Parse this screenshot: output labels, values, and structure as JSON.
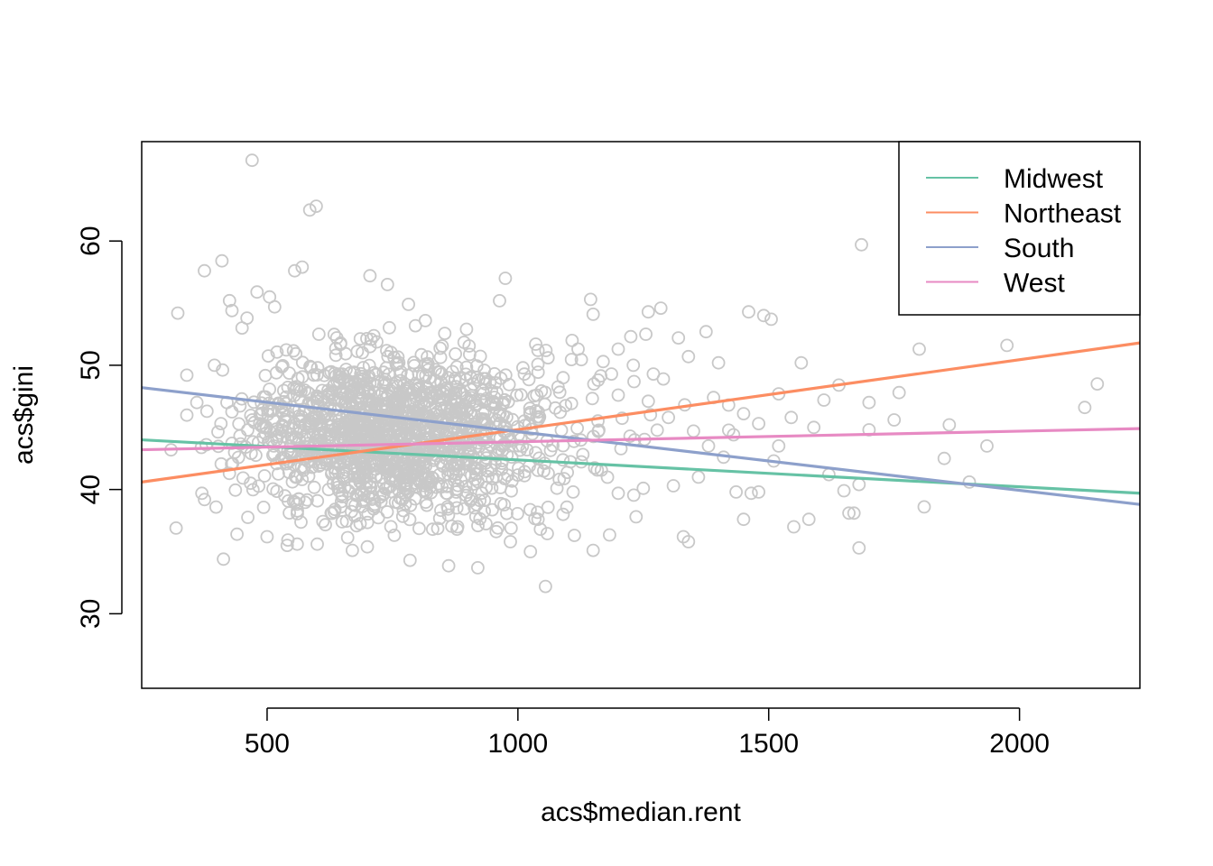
{
  "chart_data": {
    "type": "scatter",
    "title": "",
    "xlabel": "acs$median.rent",
    "ylabel": "acs$gini",
    "xlim": [
      250,
      2240
    ],
    "ylim": [
      24,
      68
    ],
    "x_ticks": [
      500,
      1000,
      1500,
      2000
    ],
    "y_ticks": [
      30,
      40,
      50,
      60
    ],
    "x_tick_labels": [
      "500",
      "1000",
      "1500",
      "2000"
    ],
    "y_tick_labels": [
      "30",
      "40",
      "50",
      "60"
    ],
    "grid": false,
    "legend_position": "top-right",
    "point_color": "#c8c8c8",
    "point_style": "open-circle",
    "points": {
      "cluster": {
        "x_center": 680,
        "y_center": 44.5,
        "x_spread": 120,
        "y_spread": 3.2,
        "count": 1500
      },
      "outliers": [
        [
          470,
          66.5
        ],
        [
          585,
          62.5
        ],
        [
          598,
          62.8
        ],
        [
          322,
          54.2
        ],
        [
          375,
          57.6
        ],
        [
          410,
          58.4
        ],
        [
          1685,
          59.7
        ],
        [
          975,
          57.0
        ],
        [
          705,
          57.2
        ],
        [
          740,
          56.5
        ],
        [
          570,
          57.9
        ],
        [
          555,
          57.6
        ],
        [
          1460,
          54.3
        ],
        [
          1490,
          54.0
        ],
        [
          1505,
          53.7
        ],
        [
          1285,
          54.6
        ],
        [
          1145,
          55.3
        ],
        [
          1150,
          54.1
        ],
        [
          1225,
          52.3
        ],
        [
          1255,
          52.5
        ],
        [
          1320,
          52.2
        ],
        [
          1375,
          52.7
        ],
        [
          1200,
          51.3
        ],
        [
          1108,
          52.0
        ],
        [
          1800,
          51.3
        ],
        [
          1975,
          51.6
        ],
        [
          1565,
          50.2
        ],
        [
          1400,
          50.2
        ],
        [
          1340,
          50.7
        ],
        [
          1640,
          48.4
        ],
        [
          1760,
          47.8
        ],
        [
          2155,
          48.5
        ],
        [
          2130,
          46.6
        ],
        [
          1700,
          47.0
        ],
        [
          1750,
          45.6
        ],
        [
          1860,
          45.2
        ],
        [
          1700,
          44.8
        ],
        [
          1935,
          43.5
        ],
        [
          1850,
          42.5
        ],
        [
          1620,
          41.2
        ],
        [
          1900,
          40.6
        ],
        [
          1680,
          40.4
        ],
        [
          1650,
          39.9
        ],
        [
          1660,
          38.1
        ],
        [
          1670,
          38.1
        ],
        [
          1810,
          38.6
        ],
        [
          1580,
          37.6
        ],
        [
          1550,
          37.0
        ],
        [
          1450,
          37.6
        ],
        [
          1680,
          35.3
        ],
        [
          1330,
          36.2
        ],
        [
          1340,
          35.8
        ],
        [
          1435,
          39.8
        ],
        [
          1480,
          39.8
        ],
        [
          1465,
          39.7
        ],
        [
          1510,
          42.3
        ],
        [
          1545,
          45.8
        ],
        [
          1590,
          45.0
        ],
        [
          1520,
          47.7
        ],
        [
          1610,
          47.2
        ],
        [
          413,
          34.4
        ],
        [
          440,
          36.4
        ],
        [
          370,
          39.7
        ],
        [
          1055,
          32.2
        ],
        [
          920,
          33.7
        ],
        [
          1025,
          35.0
        ],
        [
          1150,
          35.1
        ],
        [
          785,
          34.3
        ],
        [
          600,
          35.6
        ],
        [
          670,
          35.1
        ],
        [
          560,
          35.6
        ],
        [
          540,
          35.5
        ],
        [
          500,
          36.2
        ],
        [
          1260,
          54.3
        ],
        [
          1040,
          51.2
        ],
        [
          1010,
          49.8
        ],
        [
          1090,
          49.0
        ],
        [
          1160,
          48.8
        ],
        [
          1200,
          47.6
        ],
        [
          1260,
          47.1
        ],
        [
          1300,
          45.8
        ],
        [
          1350,
          44.7
        ],
        [
          1380,
          43.5
        ],
        [
          1410,
          42.6
        ],
        [
          1360,
          41.0
        ],
        [
          1310,
          40.3
        ],
        [
          1250,
          40.1
        ],
        [
          1200,
          39.7
        ],
        [
          1110,
          39.8
        ],
        [
          1090,
          38.0
        ],
        [
          1040,
          37.6
        ],
        [
          1045,
          36.8
        ],
        [
          985,
          35.8
        ],
        [
          960,
          36.9
        ],
        [
          880,
          37.0
        ],
        [
          830,
          36.8
        ],
        [
          1420,
          46.8
        ],
        [
          1450,
          46.1
        ],
        [
          1480,
          45.3
        ],
        [
          1430,
          44.4
        ],
        [
          1520,
          43.5
        ],
        [
          1390,
          47.4
        ],
        [
          1290,
          48.9
        ],
        [
          1270,
          49.3
        ],
        [
          1230,
          50.0
        ],
        [
          1170,
          50.3
        ],
        [
          1120,
          51.3
        ],
        [
          1060,
          50.6
        ],
        [
          340,
          49.2
        ],
        [
          395,
          50.0
        ],
        [
          420,
          47.0
        ],
        [
          380,
          46.3
        ],
        [
          360,
          47.0
        ],
        [
          450,
          53.0
        ],
        [
          430,
          54.4
        ],
        [
          425,
          55.2
        ],
        [
          460,
          53.8
        ],
        [
          480,
          55.9
        ],
        [
          505,
          55.5
        ],
        [
          515,
          54.7
        ]
      ]
    },
    "series": [
      {
        "name": "Midwest",
        "color": "#66c2a5",
        "x": [
          250,
          2240
        ],
        "y": [
          44.0,
          39.7
        ]
      },
      {
        "name": "Northeast",
        "color": "#fc8d62",
        "x": [
          250,
          2240
        ],
        "y": [
          40.6,
          51.8
        ]
      },
      {
        "name": "South",
        "color": "#8da0cb",
        "x": [
          250,
          2240
        ],
        "y": [
          48.2,
          38.8
        ]
      },
      {
        "name": "West",
        "color": "#e78ac3",
        "x": [
          250,
          2240
        ],
        "y": [
          43.2,
          44.9
        ]
      }
    ]
  }
}
